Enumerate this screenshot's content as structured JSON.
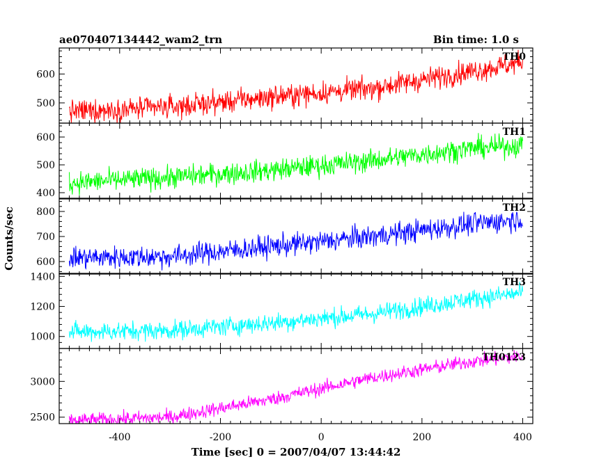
{
  "chart_data": {
    "type": "line",
    "title": "ae070407134442_wam2_trn",
    "subtitle": "Bin time: 1.0 s",
    "xlabel": "Time [sec] 0 = 2007/04/07 13:44:42",
    "ylabel": "Counts/sec",
    "xlim": [
      -520,
      420
    ],
    "x_ticks": [
      "-400",
      "-200",
      "0",
      "200",
      "400"
    ],
    "x_tick_values": [
      -400,
      -200,
      0,
      200,
      400
    ],
    "x_data_range": [
      -500,
      400
    ],
    "bin_time": 1.0,
    "grid": false,
    "legend": "none",
    "panels": [
      {
        "name": "TH0",
        "color": "#ff0000",
        "ylim": [
          430,
          690
        ],
        "y_ticks": [
          "500",
          "600"
        ],
        "y_tick_values": [
          500,
          600
        ],
        "trend": {
          "x": [
            -500,
            -300,
            -100,
            100,
            300,
            400
          ],
          "y": [
            470,
            485,
            520,
            550,
            610,
            640
          ]
        },
        "noise": 28
      },
      {
        "name": "TH1",
        "color": "#00ff00",
        "ylim": [
          380,
          650
        ],
        "y_ticks": [
          "400",
          "500",
          "600"
        ],
        "y_tick_values": [
          400,
          500,
          600
        ],
        "trend": {
          "x": [
            -500,
            -300,
            -100,
            100,
            300,
            400
          ],
          "y": [
            435,
            455,
            480,
            515,
            560,
            570
          ]
        },
        "noise": 28
      },
      {
        "name": "TH2",
        "color": "#0000ff",
        "ylim": [
          550,
          850
        ],
        "y_ticks": [
          "600",
          "700",
          "800"
        ],
        "y_tick_values": [
          600,
          700,
          800
        ],
        "trend": {
          "x": [
            -500,
            -300,
            -100,
            100,
            300,
            400
          ],
          "y": [
            615,
            620,
            660,
            700,
            750,
            770
          ]
        },
        "noise": 32
      },
      {
        "name": "TH3",
        "color": "#00ffff",
        "ylim": [
          920,
          1420
        ],
        "y_ticks": [
          "1000",
          "1200",
          "1400"
        ],
        "y_tick_values": [
          1000,
          1200,
          1400
        ],
        "trend": {
          "x": [
            -500,
            -300,
            -100,
            100,
            300,
            400
          ],
          "y": [
            1030,
            1040,
            1090,
            1150,
            1250,
            1290
          ]
        },
        "noise": 45
      },
      {
        "name": "TH0123",
        "color": "#ff00ff",
        "ylim": [
          2410,
          3460
        ],
        "y_ticks": [
          "2500",
          "3000"
        ],
        "y_tick_values": [
          2500,
          3000
        ],
        "trend": {
          "x": [
            -500,
            -300,
            -100,
            100,
            300,
            400
          ],
          "y": [
            2450,
            2500,
            2750,
            3050,
            3280,
            3350
          ]
        },
        "noise": 70
      }
    ]
  }
}
